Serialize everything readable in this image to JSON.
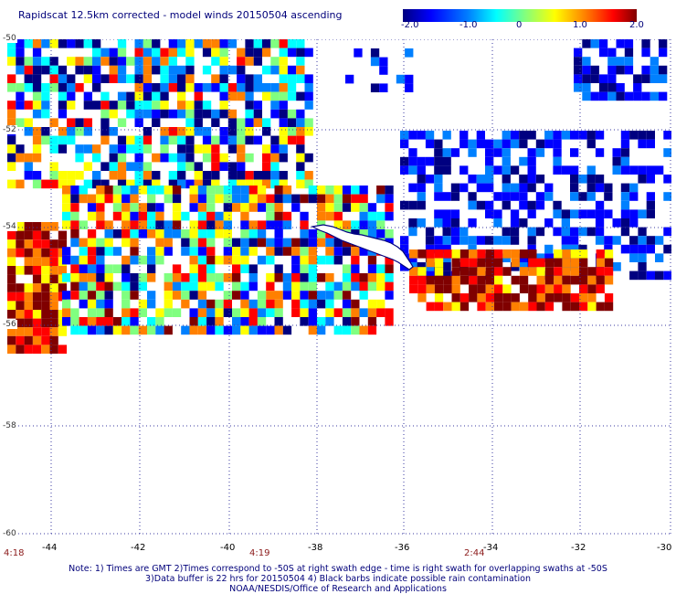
{
  "title": "Rapidscat 12.5km corrected - model winds 20150504 ascending",
  "colorbar": {
    "ticks": [
      "-2.0",
      "-1.0",
      "0",
      "1.0",
      "2.0"
    ],
    "min": -2.0,
    "max": 2.0,
    "colors": [
      "#000080",
      "#0000ff",
      "#0080ff",
      "#00ffff",
      "#80ff80",
      "#ffff00",
      "#ff8000",
      "#ff0000",
      "#800000"
    ]
  },
  "map": {
    "lon_range": [
      -45.0,
      -30.0
    ],
    "lat_range": [
      -60.0,
      -50.0
    ],
    "lat_labels": [
      "-50",
      "-52",
      "-54",
      "-56",
      "-58",
      "-60"
    ],
    "lon_labels": [
      "-44",
      "-42",
      "-40",
      "-38",
      "-36",
      "-34",
      "-32",
      "-30"
    ],
    "grid": "dotted",
    "coastline_color": "#000080"
  },
  "swath_times": [
    "4:18",
    "4:19",
    "2:44"
  ],
  "notes": [
    "Note: 1) Times are GMT 2)Times correspond to -50S at right swath edge - time is right swath for overlapping swaths at -50S",
    "3)Data buffer is 22 hrs for 20150504 4) Black barbs indicate possible rain contamination",
    "NOAA/NESDIS/Office of Research and Applications"
  ]
}
